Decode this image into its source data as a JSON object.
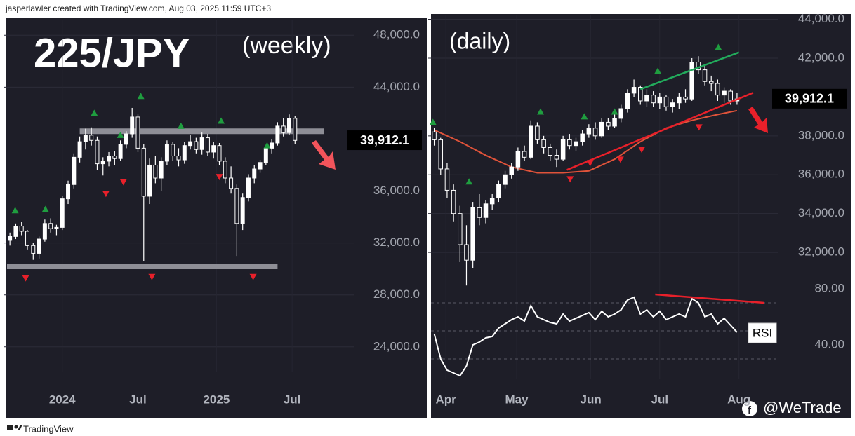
{
  "header": "jasperlawler created with TradingView.com, Aug 03, 2025 11:59 UTC+3",
  "footer": {
    "brand": "TradingView",
    "watermark": "@WeTrade"
  },
  "chart_data": [
    {
      "type": "candlestick",
      "title": "225/JPY",
      "subtitle": "(weekly)",
      "color": "#ffffff",
      "ylim": [
        22100,
        49200
      ],
      "yticks": [
        {
          "value": 48000,
          "label": "48,000.0"
        },
        {
          "value": 44000,
          "label": "44,000.0"
        },
        {
          "value": 36000,
          "label": "36,000.0"
        },
        {
          "value": 32000,
          "label": "32,000.0"
        },
        {
          "value": 28000,
          "label": "28,000.0"
        },
        {
          "value": 24000,
          "label": "24,000.0"
        }
      ],
      "xlim": [
        -0.5,
        55
      ],
      "xticks": [
        {
          "value": 9,
          "label": "2024"
        },
        {
          "value": 22,
          "label": "Jul"
        },
        {
          "value": 35.5,
          "label": "2025"
        },
        {
          "value": 48.5,
          "label": "Jul"
        }
      ],
      "last": {
        "value": 39912.1,
        "label": "39,912.1"
      },
      "ohlc": [
        [
          32200,
          32800,
          31800,
          32500
        ],
        [
          32500,
          33500,
          32300,
          33300
        ],
        [
          33300,
          33600,
          32600,
          32900
        ],
        [
          32900,
          33000,
          31500,
          31800
        ],
        [
          31800,
          32000,
          30700,
          31200
        ],
        [
          31200,
          32500,
          30800,
          32300
        ],
        [
          32300,
          33800,
          32100,
          33500
        ],
        [
          33500,
          33900,
          32800,
          33100
        ],
        [
          33100,
          33400,
          32600,
          33200
        ],
        [
          33200,
          35600,
          33000,
          35400
        ],
        [
          35400,
          36800,
          35000,
          36500
        ],
        [
          36500,
          38900,
          36200,
          38600
        ],
        [
          38600,
          40200,
          38200,
          39800
        ],
        [
          39800,
          40800,
          39200,
          40300
        ],
        [
          40300,
          40900,
          39500,
          39900
        ],
        [
          39900,
          40200,
          37600,
          38100
        ],
        [
          38100,
          38600,
          37200,
          38300
        ],
        [
          38300,
          39000,
          37900,
          38700
        ],
        [
          38700,
          39100,
          38000,
          38500
        ],
        [
          38500,
          39900,
          38300,
          39600
        ],
        [
          39600,
          40600,
          39300,
          40400
        ],
        [
          40400,
          42400,
          40100,
          41700
        ],
        [
          41700,
          41900,
          39000,
          39300
        ],
        [
          39300,
          39600,
          30600,
          35600
        ],
        [
          35600,
          38500,
          35000,
          38000
        ],
        [
          38000,
          38700,
          36600,
          37000
        ],
        [
          37000,
          38600,
          36000,
          38300
        ],
        [
          38300,
          39900,
          38000,
          39600
        ],
        [
          39600,
          39800,
          38300,
          38700
        ],
        [
          38700,
          39300,
          37900,
          38400
        ],
        [
          38400,
          39800,
          38100,
          39500
        ],
        [
          39500,
          40300,
          39200,
          39800
        ],
        [
          39800,
          40100,
          38900,
          39200
        ],
        [
          39200,
          40500,
          38800,
          40100
        ],
        [
          40100,
          40400,
          38700,
          39000
        ],
        [
          39000,
          39800,
          38500,
          39500
        ],
        [
          39500,
          39700,
          38000,
          38300
        ],
        [
          38300,
          38600,
          36600,
          37000
        ],
        [
          37000,
          37900,
          35800,
          36200
        ],
        [
          36200,
          36500,
          31000,
          33500
        ],
        [
          33500,
          35800,
          33000,
          35500
        ],
        [
          35500,
          37300,
          35200,
          37000
        ],
        [
          37000,
          38000,
          36600,
          37700
        ],
        [
          37700,
          38400,
          37400,
          38200
        ],
        [
          38200,
          39500,
          38000,
          39300
        ],
        [
          39300,
          40000,
          38900,
          39700
        ],
        [
          39700,
          41300,
          39500,
          41000
        ],
        [
          41000,
          41600,
          40200,
          40500
        ],
        [
          40500,
          41900,
          40300,
          41600
        ],
        [
          41600,
          41800,
          39600,
          39900
        ]
      ],
      "levels": [
        {
          "value": 40600,
          "x": [
            12,
            54
          ]
        },
        {
          "value": 30200,
          "x": [
            -0.5,
            46
          ]
        }
      ],
      "signals_up": {
        "x": [
          0.9,
          6.1,
          14.5,
          19,
          22.5,
          29.4,
          36.3,
          44.2
        ],
        "values": [
          34500,
          34600,
          42000,
          40300,
          43300,
          41000,
          41400,
          39500
        ]
      },
      "signals_down": {
        "x": [
          2.7,
          16.5,
          19.5,
          24.4,
          36,
          41.8
        ],
        "values": [
          29300,
          35800,
          36700,
          29400,
          37100,
          29400
        ]
      }
    },
    {
      "type": "candlestick",
      "subtitle": "(daily)",
      "color": "#ffffff",
      "ylim": [
        30200,
        44200
      ],
      "yticks": [
        {
          "value": 44000,
          "label": "44,000.0"
        },
        {
          "value": 42000,
          "label": "42,000.0"
        },
        {
          "value": 38000,
          "label": "38,000.0"
        },
        {
          "value": 36000,
          "label": "36,000.0"
        },
        {
          "value": 34000,
          "label": "34,000.0"
        },
        {
          "value": 32000,
          "label": "32,000.0"
        }
      ],
      "xlim": [
        -0.5,
        53
      ],
      "xticks": [
        {
          "value": 1.8,
          "label": "Apr"
        },
        {
          "value": 12.8,
          "label": "May"
        },
        {
          "value": 24.3,
          "label": "Jun"
        },
        {
          "value": 35,
          "label": "Jul"
        },
        {
          "value": 47.3,
          "label": "Aug"
        }
      ],
      "last": {
        "value": 39912.1,
        "label": "39,912.1"
      },
      "ohlc": [
        [
          38200,
          38400,
          37500,
          37800
        ],
        [
          37800,
          37900,
          36000,
          36300
        ],
        [
          36300,
          36600,
          34800,
          35200
        ],
        [
          35200,
          35500,
          33600,
          34000
        ],
        [
          34000,
          34400,
          31500,
          32400
        ],
        [
          32400,
          33400,
          30300,
          31600
        ],
        [
          31600,
          34600,
          31200,
          34300
        ],
        [
          34300,
          35000,
          33400,
          33800
        ],
        [
          33800,
          34700,
          33500,
          34500
        ],
        [
          34500,
          35000,
          34200,
          34800
        ],
        [
          34800,
          35700,
          34600,
          35500
        ],
        [
          35500,
          36200,
          35300,
          36000
        ],
        [
          36000,
          36600,
          35800,
          36400
        ],
        [
          36400,
          37400,
          36200,
          37200
        ],
        [
          37200,
          37500,
          36700,
          36900
        ],
        [
          36900,
          38800,
          36800,
          38500
        ],
        [
          38500,
          38700,
          37600,
          37800
        ],
        [
          37800,
          38000,
          37100,
          37400
        ],
        [
          37400,
          37600,
          36700,
          37000
        ],
        [
          37000,
          37300,
          36400,
          36800
        ],
        [
          36800,
          38000,
          36700,
          37800
        ],
        [
          37800,
          38100,
          37300,
          37500
        ],
        [
          37500,
          37900,
          37200,
          37700
        ],
        [
          37700,
          38300,
          37500,
          38100
        ],
        [
          38100,
          38600,
          37900,
          38400
        ],
        [
          38400,
          38700,
          37800,
          38000
        ],
        [
          38000,
          38900,
          37900,
          38700
        ],
        [
          38700,
          38900,
          38300,
          38500
        ],
        [
          38500,
          39100,
          38400,
          38900
        ],
        [
          38900,
          39600,
          38700,
          39400
        ],
        [
          39400,
          40400,
          39200,
          40200
        ],
        [
          40200,
          40900,
          40000,
          40500
        ],
        [
          40500,
          40600,
          39600,
          39800
        ],
        [
          39800,
          40400,
          39500,
          40100
        ],
        [
          40100,
          40300,
          39500,
          39700
        ],
        [
          39700,
          40200,
          39400,
          40000
        ],
        [
          40000,
          40100,
          39300,
          39500
        ],
        [
          39500,
          39900,
          39200,
          39700
        ],
        [
          39700,
          40200,
          39400,
          40000
        ],
        [
          40000,
          40400,
          39700,
          39900
        ],
        [
          39900,
          42000,
          39800,
          41800
        ],
        [
          41800,
          42100,
          41200,
          41400
        ],
        [
          41400,
          41600,
          40600,
          40800
        ],
        [
          40800,
          41100,
          40300,
          40700
        ],
        [
          40700,
          40900,
          39800,
          40100
        ],
        [
          40100,
          40500,
          39700,
          40300
        ],
        [
          40300,
          40400,
          39600,
          39800
        ],
        [
          39800,
          40200,
          39600,
          39900
        ]
      ],
      "ma": {
        "color": "#e0533a",
        "x": [
          0,
          4,
          8,
          12,
          16,
          20,
          24,
          28,
          32,
          36,
          40,
          44,
          47
        ],
        "values": [
          38300,
          37700,
          37000,
          36400,
          36100,
          36100,
          36200,
          36800,
          37700,
          38400,
          38800,
          39100,
          39300
        ]
      },
      "lines": [
        {
          "color": "#22ab5c",
          "x": [
            32,
            47.3
          ],
          "values": [
            40400,
            42300
          ]
        },
        {
          "color": "#e8202a",
          "x": [
            20.6,
            49.5
          ],
          "values": [
            36250,
            40220
          ]
        }
      ],
      "signals_up": {
        "x": [
          -0.2,
          5.4,
          16.5,
          23.3,
          28,
          34.7,
          44.1
        ],
        "values": [
          38700,
          35640,
          39240,
          38990,
          39240,
          41330,
          42560
        ]
      },
      "signals_down": {
        "x": [
          21.1,
          24.2,
          28.9,
          32.2,
          41.1
        ],
        "values": [
          35780,
          36610,
          36790,
          37300,
          38450
        ]
      },
      "rsi": {
        "label": "RSI",
        "ylim": [
          16,
          83.5
        ],
        "yticks": [
          {
            "value": 80,
            "label": "80.00"
          },
          {
            "value": 40,
            "label": "40.00"
          }
        ],
        "levels": [
          70,
          50,
          30
        ],
        "values": [
          48,
          30,
          22,
          20,
          18,
          25,
          40,
          42,
          45,
          46,
          52,
          55,
          58,
          60,
          57,
          68,
          60,
          58,
          56,
          55,
          62,
          57,
          59,
          61,
          63,
          58,
          64,
          60,
          62,
          65,
          72,
          74,
          62,
          65,
          60,
          64,
          58,
          60,
          62,
          60,
          73,
          70,
          60,
          62,
          55,
          59,
          54,
          49
        ],
        "line": {
          "color": "#e8202a",
          "x": [
            34.3,
            51.2
          ],
          "values": [
            76,
            70
          ]
        }
      }
    }
  ]
}
